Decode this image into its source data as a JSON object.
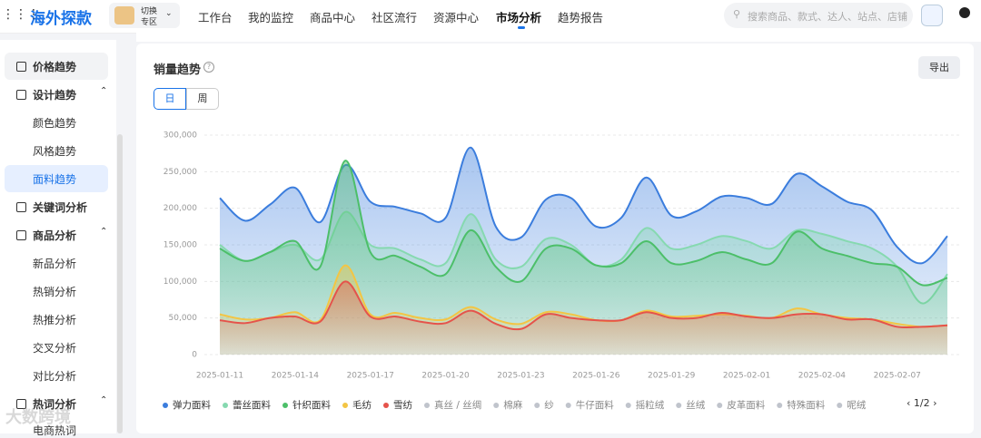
{
  "nav": {
    "logo": "海外探款",
    "switch": [
      "切换",
      "专区"
    ],
    "items": [
      "工作台",
      "我的监控",
      "商品中心",
      "社区流行",
      "资源中心",
      "市场分析",
      "趋势报告"
    ],
    "search": "搜索商品、款式、达人、站点、店铺"
  },
  "sidebar": {
    "items": [
      "价格趋势",
      "设计趋势",
      "颜色趋势",
      "风格趋势",
      "面料趋势",
      "关键词分析",
      "商品分析",
      "新品分析",
      "热销分析",
      "热推分析",
      "交叉分析",
      "对比分析",
      "热词分析",
      "电商热词"
    ]
  },
  "card": {
    "title": "销量趋势",
    "export": "导出",
    "tabs": [
      "日",
      "周"
    ],
    "page": "1/2"
  },
  "watermark": "大数跨境",
  "chart_data": {
    "type": "line",
    "x": [
      "2025-01-11",
      "2025-01-12",
      "2025-01-13",
      "2025-01-14",
      "2025-01-15",
      "2025-01-16",
      "2025-01-17",
      "2025-01-18",
      "2025-01-19",
      "2025-01-20",
      "2025-01-21",
      "2025-01-22",
      "2025-01-23",
      "2025-01-24",
      "2025-01-25",
      "2025-01-26",
      "2025-01-27",
      "2025-01-28",
      "2025-01-29",
      "2025-01-30",
      "2025-01-31",
      "2025-02-01",
      "2025-02-02",
      "2025-02-03",
      "2025-02-04",
      "2025-02-05",
      "2025-02-06",
      "2025-02-07",
      "2025-02-08",
      "2025-02-09"
    ],
    "xticks": [
      "2025-01-11",
      "2025-01-14",
      "2025-01-17",
      "2025-01-20",
      "2025-01-23",
      "2025-01-26",
      "2025-01-29",
      "2025-02-01",
      "2025-02-04",
      "2025-02-07"
    ],
    "ylim": [
      0,
      300000
    ],
    "yticks": [
      0,
      {
        "value": 50000,
        "label": "50,000"
      },
      {
        "value": 100000,
        "label": "100,000"
      },
      {
        "value": 150000,
        "label": "150,000"
      },
      {
        "value": 200000,
        "label": "200,000"
      },
      {
        "value": 250000,
        "label": "250,000"
      },
      {
        "value": 300000,
        "label": "300,000"
      }
    ],
    "grid": true,
    "series": [
      {
        "name": "弹力面料",
        "color": "#3b7ddd",
        "values": [
          214000,
          183000,
          205000,
          228000,
          181000,
          259000,
          209000,
          202000,
          193000,
          187000,
          283000,
          175000,
          160000,
          212000,
          214000,
          175000,
          187000,
          242000,
          190000,
          196000,
          216000,
          214000,
          206000,
          247000,
          230000,
          209000,
          197000,
          147000,
          125000,
          162000
        ]
      },
      {
        "name": "蕾丝面料",
        "color": "#86d9b0",
        "values": [
          150000,
          128000,
          140000,
          150000,
          130000,
          195000,
          150000,
          145000,
          130000,
          125000,
          192000,
          130000,
          120000,
          158000,
          150000,
          122000,
          130000,
          173000,
          145000,
          150000,
          162000,
          155000,
          145000,
          170000,
          165000,
          155000,
          145000,
          120000,
          70000,
          110000
        ]
      },
      {
        "name": "针织面料",
        "color": "#4cbf69",
        "values": [
          145000,
          128000,
          140000,
          155000,
          120000,
          265000,
          140000,
          135000,
          120000,
          110000,
          170000,
          120000,
          100000,
          145000,
          145000,
          122000,
          125000,
          155000,
          125000,
          128000,
          140000,
          130000,
          125000,
          168000,
          145000,
          135000,
          125000,
          120000,
          95000,
          105000
        ]
      },
      {
        "name": "毛纺",
        "color": "#f3c544",
        "values": [
          55000,
          48000,
          50000,
          58000,
          47000,
          122000,
          55000,
          57000,
          50000,
          48000,
          65000,
          48000,
          42000,
          58000,
          55000,
          47000,
          47000,
          60000,
          52000,
          53000,
          55000,
          53000,
          50000,
          63000,
          55000,
          50000,
          48000,
          42000,
          38000,
          40000
        ]
      },
      {
        "name": "雪纺",
        "color": "#e5534b",
        "values": [
          47000,
          43000,
          50000,
          52000,
          45000,
          100000,
          52000,
          52000,
          45000,
          43000,
          60000,
          42000,
          35000,
          55000,
          50000,
          47000,
          47000,
          58000,
          50000,
          50000,
          57000,
          52000,
          50000,
          55000,
          55000,
          48000,
          48000,
          38000,
          38000,
          40000
        ]
      }
    ],
    "inactive_legend": [
      "真丝 / 丝绸",
      "棉麻",
      "纱",
      "牛仔面料",
      "摇粒绒",
      "丝绒",
      "皮革面料",
      "特殊面料",
      "呢绒"
    ],
    "inactive_color": "#c0c4cc"
  }
}
